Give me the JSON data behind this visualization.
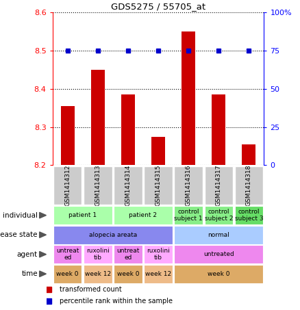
{
  "title": "GDS5275 / 55705_at",
  "samples": [
    "GSM1414312",
    "GSM1414313",
    "GSM1414314",
    "GSM1414315",
    "GSM1414316",
    "GSM1414317",
    "GSM1414318"
  ],
  "transformed_count": [
    8.355,
    8.45,
    8.385,
    8.275,
    8.55,
    8.385,
    8.255
  ],
  "percentile_rank": [
    75,
    75,
    75,
    75,
    75,
    75,
    75
  ],
  "y_min": 8.2,
  "y_max": 8.6,
  "y_ticks": [
    8.2,
    8.3,
    8.4,
    8.5,
    8.6
  ],
  "y2_ticks": [
    0,
    25,
    50,
    75,
    100
  ],
  "y2_tick_positions": [
    8.2,
    8.3,
    8.4,
    8.5,
    8.6
  ],
  "bar_color": "#cc0000",
  "dot_color": "#0000cc",
  "label_rows": [
    {
      "label": "individual",
      "groups": [
        {
          "text": "patient 1",
          "span": [
            0,
            1
          ],
          "color": "#aaffaa"
        },
        {
          "text": "patient 2",
          "span": [
            2,
            3
          ],
          "color": "#aaffaa"
        },
        {
          "text": "control\nsubject 1",
          "span": [
            4,
            4
          ],
          "color": "#88ee88"
        },
        {
          "text": "control\nsubject 2",
          "span": [
            5,
            5
          ],
          "color": "#88ee88"
        },
        {
          "text": "control\nsubject 3",
          "span": [
            6,
            6
          ],
          "color": "#66dd66"
        }
      ]
    },
    {
      "label": "disease state",
      "groups": [
        {
          "text": "alopecia areata",
          "span": [
            0,
            3
          ],
          "color": "#8888ee"
        },
        {
          "text": "normal",
          "span": [
            4,
            6
          ],
          "color": "#aaccff"
        }
      ]
    },
    {
      "label": "agent",
      "groups": [
        {
          "text": "untreat\ned",
          "span": [
            0,
            0
          ],
          "color": "#ee88ee"
        },
        {
          "text": "ruxolini\ntib",
          "span": [
            1,
            1
          ],
          "color": "#ffaaff"
        },
        {
          "text": "untreat\ned",
          "span": [
            2,
            2
          ],
          "color": "#ee88ee"
        },
        {
          "text": "ruxolini\ntib",
          "span": [
            3,
            3
          ],
          "color": "#ffaaff"
        },
        {
          "text": "untreated",
          "span": [
            4,
            6
          ],
          "color": "#ee88ee"
        }
      ]
    },
    {
      "label": "time",
      "groups": [
        {
          "text": "week 0",
          "span": [
            0,
            0
          ],
          "color": "#ddaa66"
        },
        {
          "text": "week 12",
          "span": [
            1,
            1
          ],
          "color": "#eebb88"
        },
        {
          "text": "week 0",
          "span": [
            2,
            2
          ],
          "color": "#ddaa66"
        },
        {
          "text": "week 12",
          "span": [
            3,
            3
          ],
          "color": "#eebb88"
        },
        {
          "text": "week 0",
          "span": [
            4,
            6
          ],
          "color": "#ddaa66"
        }
      ]
    }
  ],
  "legend": [
    {
      "color": "#cc0000",
      "label": "transformed count"
    },
    {
      "color": "#0000cc",
      "label": "percentile rank within the sample"
    }
  ]
}
